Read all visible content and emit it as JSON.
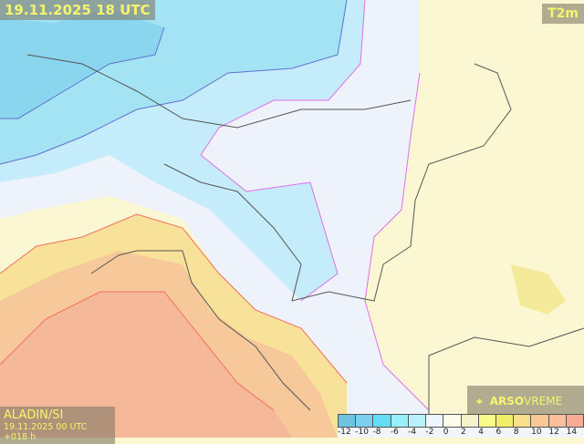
{
  "header": {
    "timestamp": "19.11.2025 18 UTC",
    "variable": "T2m"
  },
  "footer": {
    "model": "ALADIN/SI",
    "run": "19.11.2025 00 UTC +018 h"
  },
  "brand": {
    "icon": "satellite-icon",
    "name_bold": "ARSO",
    "name_light": "VREME"
  },
  "legend": {
    "ticks": [
      "-12",
      "-10",
      "-8",
      "-6",
      "-4",
      "-2",
      "0",
      "2",
      "4",
      "6",
      "8",
      "10",
      "12",
      "14"
    ],
    "colors": [
      "#6ec3e0",
      "#7dcff2",
      "#64dcf5",
      "#98f0fc",
      "#b8f0fc",
      "#eef6fe",
      "#fcfcec",
      "#f4f4c8",
      "#fafa8c",
      "#f2ee6a",
      "#fae08a",
      "#fac896",
      "#fbbf9c",
      "#f9ab96"
    ]
  }
}
